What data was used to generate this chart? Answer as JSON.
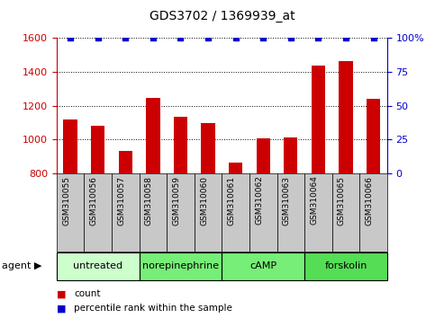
{
  "title": "GDS3702 / 1369939_at",
  "samples": [
    "GSM310055",
    "GSM310056",
    "GSM310057",
    "GSM310058",
    "GSM310059",
    "GSM310060",
    "GSM310061",
    "GSM310062",
    "GSM310063",
    "GSM310064",
    "GSM310065",
    "GSM310066"
  ],
  "counts": [
    1120,
    1080,
    935,
    1248,
    1135,
    1098,
    865,
    1005,
    1010,
    1440,
    1465,
    1240
  ],
  "percentile": [
    100,
    100,
    100,
    100,
    100,
    100,
    100,
    100,
    100,
    100,
    100,
    100
  ],
  "bar_color": "#cc0000",
  "dot_color": "#0000cc",
  "ylim_left": [
    800,
    1600
  ],
  "ylim_right": [
    0,
    100
  ],
  "yticks_left": [
    800,
    1000,
    1200,
    1400,
    1600
  ],
  "yticks_right": [
    0,
    25,
    50,
    75,
    100
  ],
  "groups": [
    {
      "label": "untreated",
      "start": 0,
      "end": 3,
      "color": "#ccffcc"
    },
    {
      "label": "norepinephrine",
      "start": 3,
      "end": 6,
      "color": "#77ee77"
    },
    {
      "label": "cAMP",
      "start": 6,
      "end": 9,
      "color": "#77ee77"
    },
    {
      "label": "forskolin",
      "start": 9,
      "end": 12,
      "color": "#55dd55"
    }
  ],
  "agent_label": "agent",
  "legend_count_label": "count",
  "legend_pct_label": "percentile rank within the sample",
  "bar_color_hex": "#cc0000",
  "dot_color_hex": "#0000cc",
  "sample_box_color": "#c8c8c8",
  "title_fontsize": 10,
  "tick_fontsize": 8,
  "label_fontsize": 8,
  "group_fontsize": 8
}
